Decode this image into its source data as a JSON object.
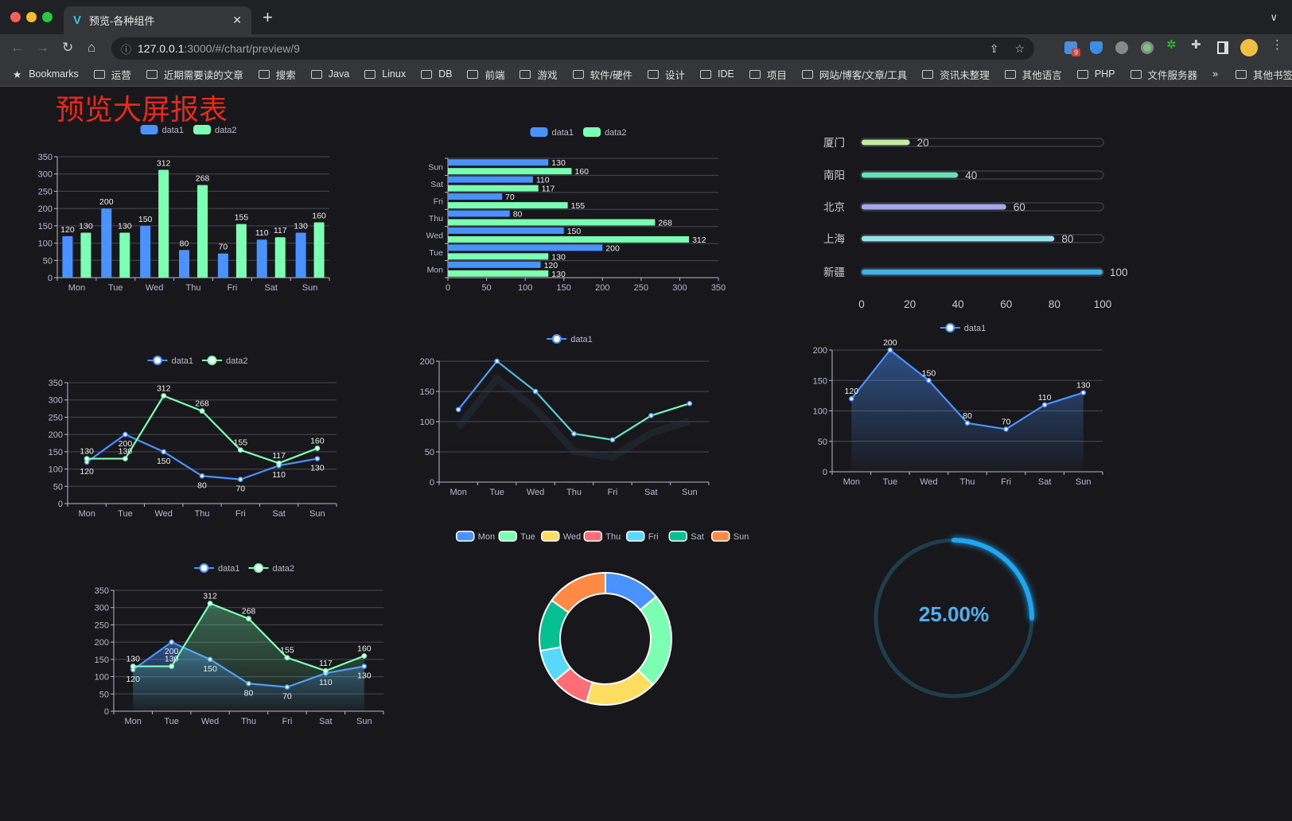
{
  "browser": {
    "tab_title": "预览-各种组件",
    "url_host": "127.0.0.1",
    "url_path": ":3000/#/chart/preview/9",
    "extension_badge": "9",
    "bookmarks": [
      "Bookmarks",
      "运营",
      "近期需要读的文章",
      "搜索",
      "Java",
      "Linux",
      "DB",
      "前端",
      "游戏",
      "软件/硬件",
      "设计",
      "IDE",
      "项目",
      "网站/博客/文章/工具",
      "资讯未整理",
      "其他语言",
      "PHP",
      "文件服务器"
    ],
    "bookmarks_overflow": "»",
    "other_bookmarks": "其他书签"
  },
  "page": {
    "title": "预览大屏报表",
    "title_color": "#e8291c"
  },
  "colors": {
    "data1": "#4992ff",
    "data2": "#7cffb2",
    "bg": "#18181c"
  },
  "chart_data": [
    {
      "id": "bar",
      "type": "bar",
      "legend": [
        "data1",
        "data2"
      ],
      "categories": [
        "Mon",
        "Tue",
        "Wed",
        "Thu",
        "Fri",
        "Sat",
        "Sun"
      ],
      "series": [
        {
          "name": "data1",
          "values": [
            120,
            200,
            150,
            80,
            70,
            110,
            130
          ]
        },
        {
          "name": "data2",
          "values": [
            130,
            130,
            312,
            268,
            155,
            117,
            160
          ]
        }
      ],
      "ylim": [
        0,
        350
      ],
      "yticks": [
        0,
        50,
        100,
        150,
        200,
        250,
        300,
        350
      ],
      "grid": true,
      "legend_position": "top"
    },
    {
      "id": "hbar",
      "type": "bar",
      "orientation": "horizontal",
      "legend": [
        "data1",
        "data2"
      ],
      "categories": [
        "Mon",
        "Tue",
        "Wed",
        "Thu",
        "Fri",
        "Sat",
        "Sun"
      ],
      "series": [
        {
          "name": "data1",
          "values": [
            120,
            200,
            150,
            80,
            70,
            110,
            130
          ]
        },
        {
          "name": "data2",
          "values": [
            130,
            130,
            312,
            268,
            155,
            117,
            160
          ]
        }
      ],
      "xlim": [
        0,
        350
      ],
      "xticks": [
        0,
        50,
        100,
        150,
        200,
        250,
        300,
        350
      ],
      "grid": true,
      "legend_position": "top"
    },
    {
      "id": "progress",
      "type": "bar",
      "orientation": "horizontal",
      "categories": [
        "厦门",
        "南阳",
        "北京",
        "上海",
        "新疆"
      ],
      "values": [
        20,
        40,
        60,
        80,
        100
      ],
      "colors": [
        "#c4eba6",
        "#67e0b3",
        "#a3a7ea",
        "#96e2ea",
        "#3fb1e3"
      ],
      "xlim": [
        0,
        100
      ],
      "xticks": [
        0,
        20,
        40,
        60,
        80,
        100
      ]
    },
    {
      "id": "line2",
      "type": "line",
      "legend": [
        "data1",
        "data2"
      ],
      "categories": [
        "Mon",
        "Tue",
        "Wed",
        "Thu",
        "Fri",
        "Sat",
        "Sun"
      ],
      "series": [
        {
          "name": "data1",
          "values": [
            120,
            200,
            150,
            80,
            70,
            110,
            130
          ]
        },
        {
          "name": "data2",
          "values": [
            130,
            130,
            312,
            268,
            155,
            117,
            160
          ]
        }
      ],
      "ylim": [
        0,
        350
      ],
      "yticks": [
        0,
        50,
        100,
        150,
        200,
        250,
        300,
        350
      ],
      "data_labels": true,
      "grid": true,
      "legend_position": "top"
    },
    {
      "id": "line-gradient",
      "type": "line",
      "legend": [
        "data1"
      ],
      "categories": [
        "Mon",
        "Tue",
        "Wed",
        "Thu",
        "Fri",
        "Sat",
        "Sun"
      ],
      "series": [
        {
          "name": "data1",
          "values": [
            120,
            200,
            150,
            80,
            70,
            110,
            130
          ]
        }
      ],
      "ylim": [
        0,
        200
      ],
      "yticks": [
        0,
        50,
        100,
        150,
        200
      ],
      "data_labels": false,
      "grid": true,
      "legend_position": "top"
    },
    {
      "id": "area1",
      "type": "area",
      "legend": [
        "data1"
      ],
      "categories": [
        "Mon",
        "Tue",
        "Wed",
        "Thu",
        "Fri",
        "Sat",
        "Sun"
      ],
      "series": [
        {
          "name": "data1",
          "values": [
            120,
            200,
            150,
            80,
            70,
            110,
            130
          ]
        }
      ],
      "ylim": [
        0,
        200
      ],
      "yticks": [
        0,
        50,
        100,
        150,
        200
      ],
      "data_labels": true,
      "grid": true,
      "legend_position": "top"
    },
    {
      "id": "area2",
      "type": "area",
      "legend": [
        "data1",
        "data2"
      ],
      "categories": [
        "Mon",
        "Tue",
        "Wed",
        "Thu",
        "Fri",
        "Sat",
        "Sun"
      ],
      "series": [
        {
          "name": "data1",
          "values": [
            120,
            200,
            150,
            80,
            70,
            110,
            130
          ]
        },
        {
          "name": "data2",
          "values": [
            130,
            130,
            312,
            268,
            155,
            117,
            160
          ]
        }
      ],
      "ylim": [
        0,
        350
      ],
      "yticks": [
        0,
        50,
        100,
        150,
        200,
        250,
        300,
        350
      ],
      "data_labels": true,
      "grid": true,
      "legend_position": "top"
    },
    {
      "id": "donut",
      "type": "pie",
      "donut": true,
      "legend": [
        "Mon",
        "Tue",
        "Wed",
        "Thu",
        "Fri",
        "Sat",
        "Sun"
      ],
      "values": [
        120,
        200,
        150,
        80,
        70,
        110,
        130
      ],
      "colors": [
        "#4992ff",
        "#7cffb2",
        "#fddd60",
        "#ff6e76",
        "#58d9f9",
        "#05c091",
        "#ff8a45"
      ],
      "legend_position": "top"
    },
    {
      "id": "gauge",
      "type": "gauge",
      "value": 25,
      "label": "25.00%",
      "color": "#1ea6f0"
    }
  ]
}
